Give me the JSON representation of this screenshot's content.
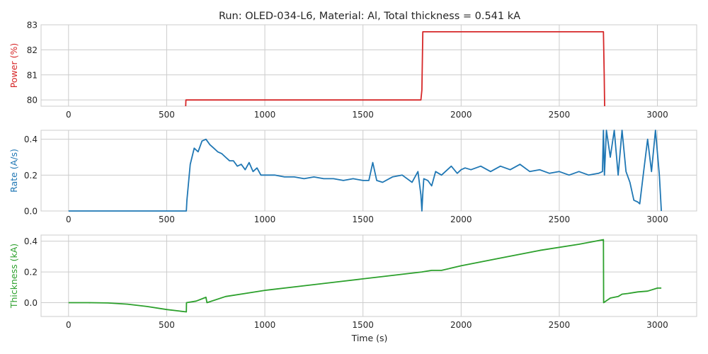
{
  "title": "Run: OLED-034-L6, Material: Al, Total thickness = 0.541 kA",
  "chart_data": [
    {
      "type": "line",
      "ylabel": "Power (%)",
      "color": "#d62728",
      "xlim": [
        -140,
        3200
      ],
      "ylim": [
        79.75,
        83.0
      ],
      "xticks": [
        0,
        500,
        1000,
        1500,
        2000,
        2500,
        3000
      ],
      "yticks": [
        80,
        81,
        82,
        83
      ],
      "ytick_labels": [
        "80",
        "81",
        "82",
        "83"
      ],
      "grid": true,
      "x": [
        597,
        598,
        600,
        1795,
        1800,
        1805,
        2725,
        2729,
        2731
      ],
      "y": [
        79.75,
        80.0,
        80.0,
        80.0,
        80.4,
        82.72,
        82.72,
        81.0,
        79.75
      ]
    },
    {
      "type": "line",
      "ylabel": "Rate (A/s)",
      "color": "#1f77b4",
      "xlim": [
        -140,
        3200
      ],
      "ylim": [
        0.0,
        0.45
      ],
      "xticks": [
        0,
        500,
        1000,
        1500,
        2000,
        2500,
        3000
      ],
      "yticks": [
        0.0,
        0.2,
        0.4
      ],
      "ytick_labels": [
        "0.0",
        "0.2",
        "0.4"
      ],
      "grid": true,
      "x": [
        0,
        30,
        60,
        600,
        603,
        620,
        640,
        660,
        680,
        700,
        720,
        740,
        760,
        780,
        800,
        820,
        840,
        860,
        880,
        900,
        920,
        940,
        960,
        980,
        1000,
        1050,
        1100,
        1150,
        1200,
        1250,
        1300,
        1350,
        1400,
        1450,
        1500,
        1530,
        1550,
        1570,
        1600,
        1650,
        1700,
        1750,
        1780,
        1795,
        1800,
        1805,
        1810,
        1830,
        1850,
        1870,
        1900,
        1950,
        1980,
        2000,
        2020,
        2050,
        2100,
        2150,
        2200,
        2250,
        2300,
        2350,
        2400,
        2450,
        2500,
        2550,
        2600,
        2650,
        2700,
        2720,
        2725,
        2730,
        2740,
        2760,
        2780,
        2800,
        2820,
        2840,
        2860,
        2880,
        2900,
        2910,
        2930,
        2950,
        2970,
        2990,
        3010,
        3020
      ],
      "y": [
        0.0,
        0.0,
        0.0,
        0.0,
        0.06,
        0.26,
        0.35,
        0.33,
        0.39,
        0.4,
        0.37,
        0.35,
        0.33,
        0.32,
        0.3,
        0.28,
        0.28,
        0.25,
        0.26,
        0.23,
        0.27,
        0.22,
        0.24,
        0.2,
        0.2,
        0.2,
        0.19,
        0.19,
        0.18,
        0.19,
        0.18,
        0.18,
        0.17,
        0.18,
        0.17,
        0.17,
        0.27,
        0.17,
        0.16,
        0.19,
        0.2,
        0.16,
        0.22,
        0.09,
        0.0,
        0.1,
        0.18,
        0.17,
        0.14,
        0.22,
        0.2,
        0.25,
        0.21,
        0.23,
        0.24,
        0.23,
        0.25,
        0.22,
        0.25,
        0.23,
        0.26,
        0.22,
        0.23,
        0.21,
        0.22,
        0.2,
        0.22,
        0.2,
        0.21,
        0.22,
        0.45,
        0.2,
        0.45,
        0.3,
        0.45,
        0.2,
        0.45,
        0.22,
        0.16,
        0.06,
        0.05,
        0.04,
        0.22,
        0.4,
        0.22,
        0.45,
        0.2,
        0.0
      ]
    },
    {
      "type": "line",
      "ylabel": "Thickness (kA)",
      "color": "#2ca02c",
      "xlim": [
        -140,
        3200
      ],
      "ylim": [
        -0.09,
        0.44
      ],
      "xticks": [
        0,
        500,
        1000,
        1500,
        2000,
        2500,
        3000
      ],
      "yticks": [
        0.0,
        0.2,
        0.4
      ],
      "ytick_labels": [
        "0.0",
        "0.2",
        "0.4"
      ],
      "xlabel": "Time (s)",
      "grid": true,
      "x": [
        0,
        100,
        200,
        300,
        400,
        500,
        600,
        601,
        650,
        700,
        705,
        800,
        900,
        1000,
        1200,
        1400,
        1600,
        1800,
        1850,
        1900,
        2000,
        2200,
        2400,
        2600,
        2725,
        2726,
        2760,
        2800,
        2820,
        2850,
        2900,
        2950,
        3000,
        3020
      ],
      "y": [
        0.0,
        0.0,
        -0.002,
        -0.01,
        -0.025,
        -0.045,
        -0.06,
        0.0,
        0.01,
        0.035,
        0.0,
        0.04,
        0.06,
        0.08,
        0.11,
        0.14,
        0.17,
        0.2,
        0.21,
        0.21,
        0.24,
        0.29,
        0.34,
        0.38,
        0.41,
        0.0,
        0.03,
        0.04,
        0.055,
        0.06,
        0.07,
        0.075,
        0.095,
        0.095
      ]
    }
  ]
}
